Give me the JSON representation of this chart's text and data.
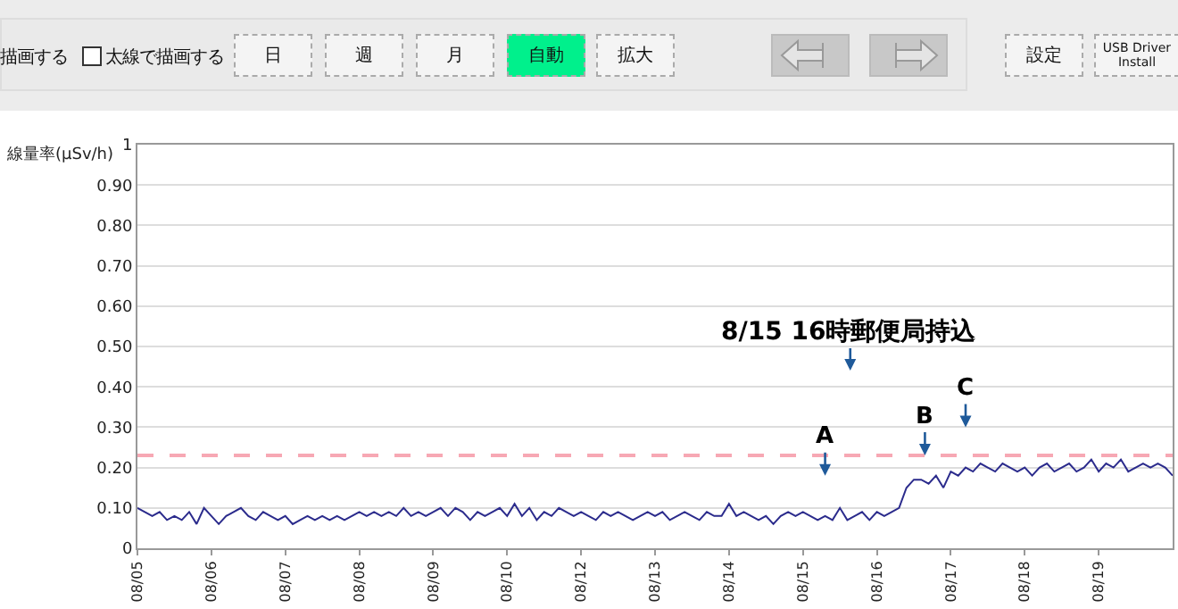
{
  "chart_data": {
    "type": "line",
    "ylabel": "線量率(μSv/h)",
    "annotations": [
      "描画する",
      "太線で描画する",
      "日",
      "週",
      "月",
      "自動",
      "拡大",
      "設定",
      "USB Driver Install",
      "8/15 16時郵便局持込",
      "A",
      "B",
      "C"
    ],
    "categories": [
      "08/05",
      null,
      null,
      null,
      null,
      null,
      null,
      null,
      null,
      null,
      "08/06",
      null,
      null,
      null,
      null,
      null,
      null,
      null,
      null,
      null,
      "08/07",
      null,
      null,
      null,
      null,
      null,
      null,
      null,
      null,
      null,
      "08/08",
      null,
      null,
      null,
      null,
      null,
      null,
      null,
      null,
      null,
      "08/09",
      null,
      null,
      null,
      null,
      null,
      null,
      null,
      null,
      null,
      "08/10",
      null,
      null,
      null,
      null,
      null,
      null,
      null,
      null,
      null,
      "08/12",
      null,
      null,
      null,
      null,
      null,
      null,
      null,
      null,
      null,
      "08/13",
      null,
      null,
      null,
      null,
      null,
      null,
      null,
      null,
      null,
      "08/14",
      null,
      null,
      null,
      null,
      null,
      null,
      null,
      null,
      null,
      "08/15",
      null,
      null,
      null,
      null,
      null,
      null,
      null,
      null,
      null,
      "08/16",
      null,
      null,
      null,
      null,
      null,
      null,
      null,
      null,
      null,
      "08/17",
      null,
      null,
      null,
      null,
      null,
      null,
      null,
      null,
      null,
      "08/18",
      null,
      null,
      null,
      null,
      null,
      null,
      null,
      null,
      null,
      "08/19",
      null,
      null,
      null,
      null,
      null,
      null,
      null,
      null,
      null,
      null
    ],
    "series": [
      {
        "color": "#2b2b8c",
        "values": [
          0.1,
          0.09,
          0.08,
          0.09,
          0.07,
          0.08,
          0.07,
          0.09,
          0.06,
          0.1,
          0.08,
          0.06,
          0.08,
          0.09,
          0.1,
          0.08,
          0.07,
          0.09,
          0.08,
          0.07,
          0.08,
          0.06,
          0.07,
          0.08,
          0.07,
          0.08,
          0.07,
          0.08,
          0.07,
          0.08,
          0.09,
          0.08,
          0.09,
          0.08,
          0.09,
          0.08,
          0.1,
          0.08,
          0.09,
          0.08,
          0.09,
          0.1,
          0.08,
          0.1,
          0.09,
          0.07,
          0.09,
          0.08,
          0.09,
          0.1,
          0.08,
          0.11,
          0.08,
          0.1,
          0.07,
          0.09,
          0.08,
          0.1,
          0.09,
          0.08,
          0.09,
          0.08,
          0.07,
          0.09,
          0.08,
          0.09,
          0.08,
          0.07,
          0.08,
          0.09,
          0.08,
          0.09,
          0.07,
          0.08,
          0.09,
          0.08,
          0.07,
          0.09,
          0.08,
          0.08,
          0.11,
          0.08,
          0.09,
          0.08,
          0.07,
          0.08,
          0.06,
          0.08,
          0.09,
          0.08,
          0.09,
          0.08,
          0.07,
          0.08,
          0.07,
          0.1,
          0.07,
          0.08,
          0.09,
          0.07,
          0.09,
          0.08,
          0.09,
          0.1,
          0.15,
          0.17,
          0.17,
          0.16,
          0.18,
          0.15,
          0.19,
          0.18,
          0.2,
          0.19,
          0.21,
          0.2,
          0.19,
          0.21,
          0.2,
          0.19,
          0.2,
          0.18,
          0.2,
          0.21,
          0.19,
          0.2,
          0.21,
          0.19,
          0.2,
          0.22,
          0.19,
          0.21,
          0.2,
          0.22,
          0.19,
          0.2,
          0.21,
          0.2,
          0.21,
          0.2,
          0.18
        ]
      }
    ],
    "ylim": [
      0,
      1
    ],
    "yticks": [
      0,
      {
        "value": 0.1,
        "label": "0.10"
      },
      {
        "value": 0.2,
        "label": "0.20"
      },
      {
        "value": 0.3,
        "label": "0.30"
      },
      {
        "value": 0.4,
        "label": "0.40"
      },
      {
        "value": 0.5,
        "label": "0.50"
      },
      {
        "value": 0.6,
        "label": "0.60"
      },
      {
        "value": 0.7,
        "label": "0.70"
      },
      {
        "value": 0.8,
        "label": "0.80"
      },
      {
        "value": 0.9,
        "label": "0.90"
      },
      1
    ],
    "ref_lines": [
      {
        "axis": "y",
        "value": 0.23,
        "color": "#f7a8b4",
        "line_style": "dashed"
      }
    ],
    "grid": "y",
    "marker": "none",
    "line_style": "solid"
  }
}
